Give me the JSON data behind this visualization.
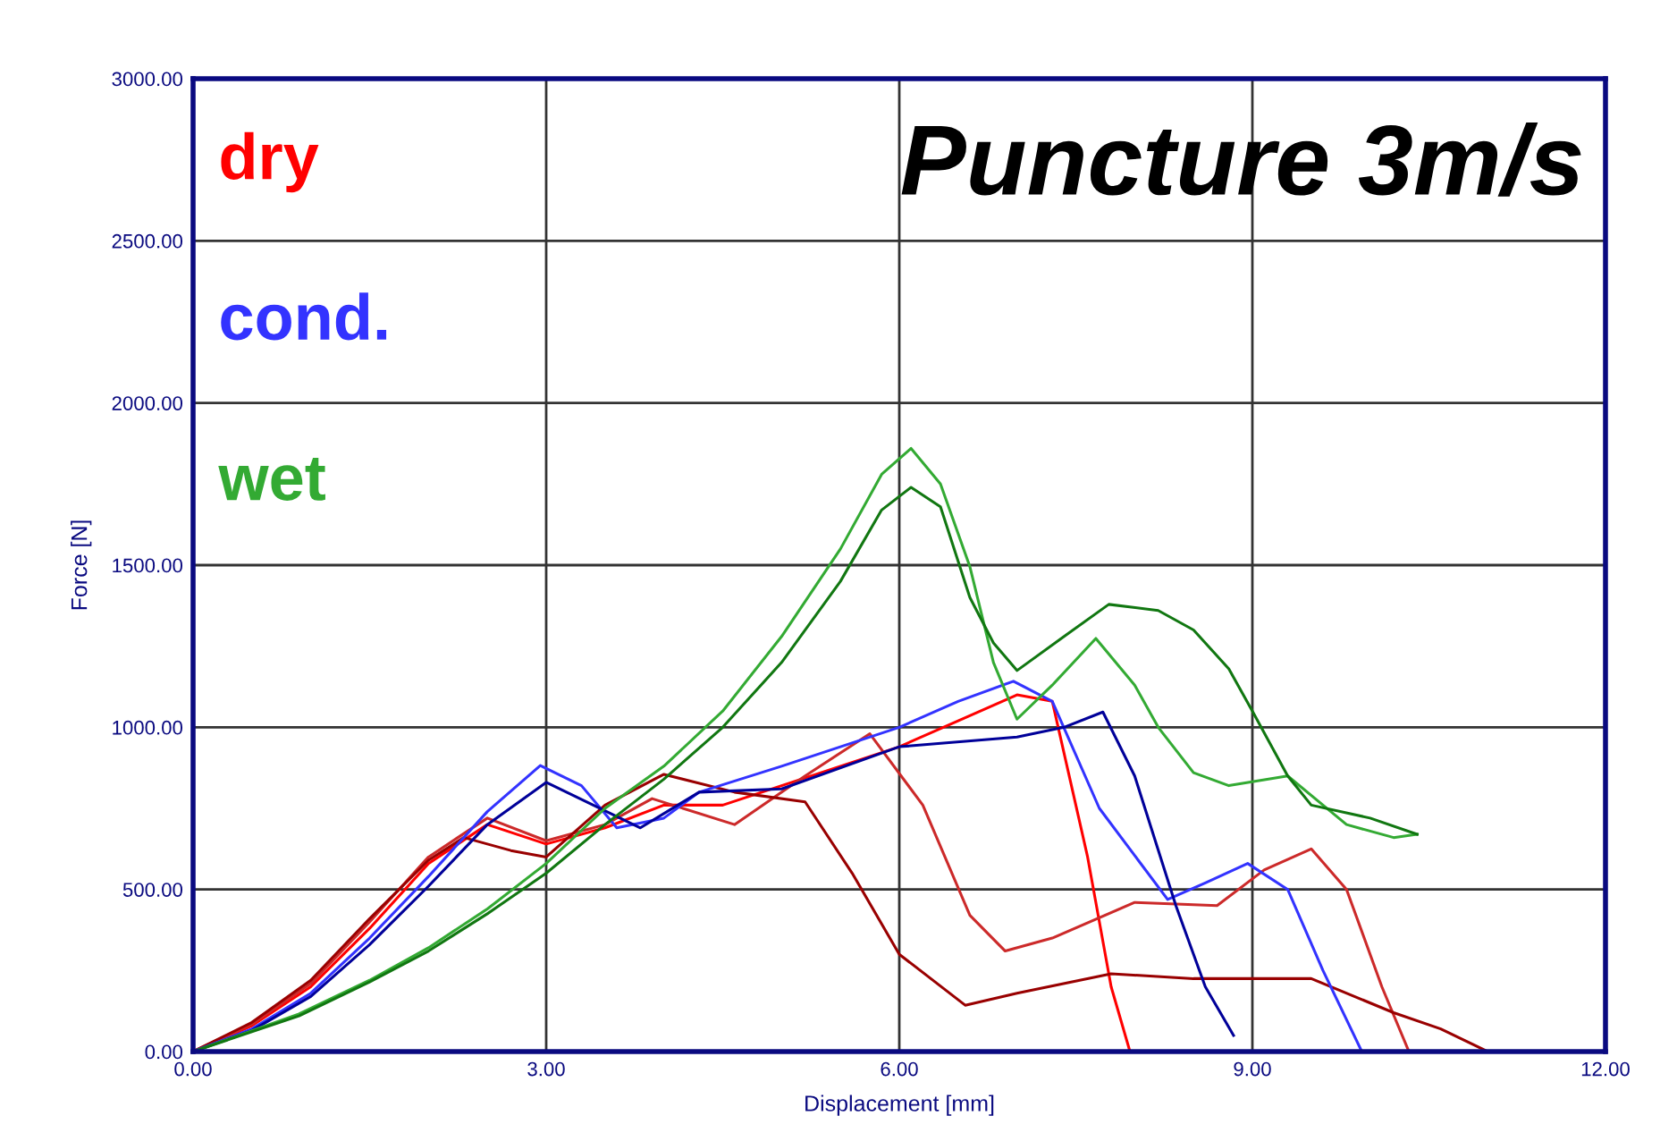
{
  "chart_data": {
    "type": "line",
    "title": "Puncture 3m/s",
    "xlabel": "Displacement [mm]",
    "ylabel": "Force [N]",
    "xlim": [
      0,
      12
    ],
    "ylim": [
      0,
      3000
    ],
    "xticks": [
      {
        "value": 0,
        "label": "0.00"
      },
      {
        "value": 3,
        "label": "3.00"
      },
      {
        "value": 6,
        "label": "6.00"
      },
      {
        "value": 9,
        "label": "9.00"
      },
      {
        "value": 12,
        "label": "12.00"
      }
    ],
    "yticks": [
      {
        "value": 0,
        "label": "0.00"
      },
      {
        "value": 500,
        "label": "500.00"
      },
      {
        "value": 1000,
        "label": "1000.00"
      },
      {
        "value": 1500,
        "label": "1500.00"
      },
      {
        "value": 2000,
        "label": "2000.00"
      },
      {
        "value": 2500,
        "label": "2500.00"
      },
      {
        "value": 3000,
        "label": "3000.00"
      }
    ],
    "grid": true,
    "legend": "top left",
    "marker": "none",
    "line_style": "solid",
    "series": [
      {
        "name": "dry",
        "color": "#ff0000",
        "x": [
          0,
          0.5,
          1,
          1.5,
          2,
          2.5,
          3,
          3.5,
          4,
          4.5,
          5,
          5.5,
          6,
          6.5,
          7,
          7.3,
          7.6,
          7.8,
          7.96
        ],
        "values": [
          0,
          80,
          200,
          380,
          580,
          700,
          640,
          690,
          760,
          760,
          820,
          880,
          940,
          1020,
          1100,
          1080,
          600,
          200,
          0
        ]
      },
      {
        "color": "#cc2a2a",
        "x": [
          0,
          0.5,
          1,
          1.5,
          2,
          2.5,
          3,
          3.5,
          3.9,
          4.6,
          5.2,
          5.75,
          6.2,
          6.6,
          6.9,
          7.3,
          8,
          8.7,
          9.1,
          9.5,
          9.8,
          10.1,
          10.33
        ],
        "values": [
          0,
          85,
          210,
          400,
          600,
          720,
          650,
          700,
          780,
          700,
          850,
          980,
          760,
          420,
          310,
          350,
          460,
          450,
          560,
          625,
          500,
          200,
          0
        ]
      },
      {
        "color": "#990000",
        "x": [
          0,
          0.5,
          1,
          1.5,
          2,
          2.3,
          2.7,
          3,
          3.5,
          4,
          4.6,
          5.2,
          5.6,
          6,
          6.56,
          7,
          7.8,
          8.5,
          9,
          9.5,
          10.2,
          10.6,
          11
        ],
        "values": [
          0,
          90,
          220,
          410,
          590,
          660,
          620,
          600,
          760,
          855,
          800,
          770,
          550,
          300,
          143,
          180,
          240,
          225,
          225,
          225,
          120,
          70,
          0
        ]
      },
      {
        "name": "cond.",
        "color": "#3333ff",
        "x": [
          0,
          0.5,
          1,
          1.5,
          2,
          2.5,
          2.95,
          3.3,
          3.6,
          4,
          4.3,
          5,
          6,
          6.5,
          6.97,
          7.3,
          7.7,
          8.28,
          8.6,
          8.96,
          9.3,
          9.6,
          9.93
        ],
        "values": [
          0,
          70,
          180,
          350,
          540,
          740,
          882,
          820,
          690,
          720,
          800,
          880,
          1000,
          1080,
          1142,
          1080,
          750,
          469,
          520,
          580,
          500,
          250,
          0
        ]
      },
      {
        "color": "#000099",
        "x": [
          0,
          0.5,
          1,
          1.5,
          2,
          2.5,
          3,
          3.4,
          3.8,
          4.3,
          5,
          6,
          7,
          7.4,
          7.73,
          8,
          8.35,
          8.6,
          8.84
        ],
        "values": [
          0,
          65,
          170,
          330,
          510,
          700,
          830,
          760,
          690,
          800,
          810,
          940,
          970,
          1000,
          1047,
          850,
          450,
          200,
          50
        ]
      },
      {
        "name": "wet",
        "color": "#33aa33",
        "x": [
          0,
          0.9,
          1.5,
          2,
          2.5,
          3,
          3.5,
          4,
          4.5,
          5,
          5.5,
          5.85,
          6.1,
          6.35,
          6.6,
          6.8,
          7,
          7.3,
          7.67,
          8,
          8.2,
          8.5,
          8.8,
          9.3,
          9.6,
          9.8,
          10.2,
          10.4
        ],
        "values": [
          0,
          116,
          220,
          320,
          440,
          580,
          750,
          880,
          1050,
          1280,
          1550,
          1780,
          1860,
          1750,
          1495,
          1200,
          1025,
          1130,
          1274,
          1130,
          1000,
          860,
          820,
          850,
          760,
          700,
          660,
          670
        ]
      },
      {
        "color": "#117711",
        "x": [
          0,
          0.9,
          1.5,
          2,
          2.5,
          3,
          3.5,
          4,
          4.5,
          5,
          5.5,
          5.85,
          6.1,
          6.35,
          6.6,
          6.8,
          7,
          7.4,
          7.78,
          8.2,
          8.5,
          8.8,
          9,
          9.3,
          9.5,
          10,
          10.4
        ],
        "values": [
          0,
          110,
          215,
          310,
          425,
          550,
          700,
          840,
          1000,
          1200,
          1450,
          1670,
          1740,
          1680,
          1400,
          1260,
          1175,
          1280,
          1379,
          1360,
          1300,
          1180,
          1050,
          850,
          760,
          720,
          670
        ]
      }
    ]
  }
}
